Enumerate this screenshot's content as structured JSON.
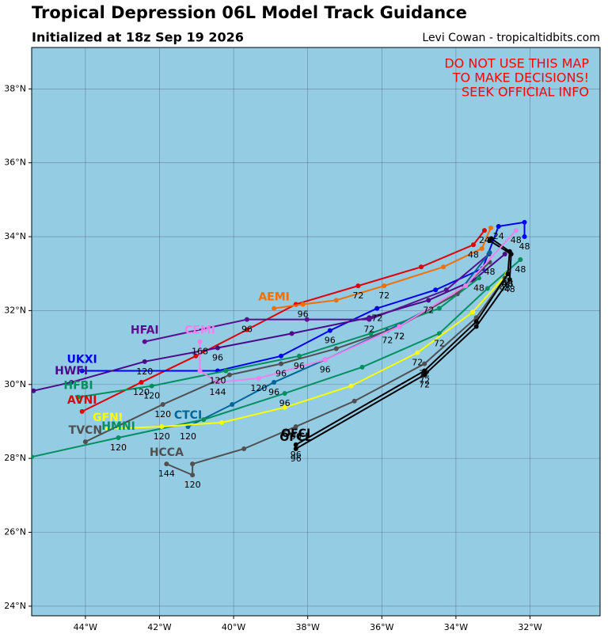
{
  "chart_data": {
    "type": "line",
    "title": "Tropical Depression 06L Model Track Guidance",
    "subtitle": "Initialized at 18z Sep 19 2026",
    "credit": "Levi Cowan - tropicaltidbits.com",
    "warning": [
      "DO NOT USE THIS MAP",
      "TO MAKE DECISIONS!",
      "SEEK OFFICIAL INFO"
    ],
    "warning_color": "#ff0000",
    "background": "#94cce4",
    "grid": true,
    "xlim": [
      -45.45,
      -30.11
    ],
    "ylim": [
      23.74,
      39.12
    ],
    "xticks": [
      {
        "value": -44,
        "label": "44°W"
      },
      {
        "value": -42,
        "label": "42°W"
      },
      {
        "value": -40,
        "label": "40°W"
      },
      {
        "value": -38,
        "label": "38°W"
      },
      {
        "value": -36,
        "label": "36°W"
      },
      {
        "value": -34,
        "label": "34°W"
      },
      {
        "value": -32,
        "label": "32°W"
      }
    ],
    "yticks": [
      {
        "value": 24,
        "label": "24°N"
      },
      {
        "value": 26,
        "label": "26°N"
      },
      {
        "value": 28,
        "label": "28°N"
      },
      {
        "value": 30,
        "label": "30°N"
      },
      {
        "value": 32,
        "label": "32°N"
      },
      {
        "value": 34,
        "label": "34°N"
      },
      {
        "value": 36,
        "label": "36°N"
      },
      {
        "value": 38,
        "label": "38°N"
      }
    ],
    "series": [
      {
        "name": "AVNI",
        "color": "#e00000",
        "x": [
          -44.09,
          -42.49,
          -41.02,
          -39.64,
          -38.32,
          -36.64,
          -34.94,
          -33.53,
          -33.23
        ],
        "values": [
          29.27,
          30.06,
          30.77,
          31.48,
          32.17,
          32.67,
          33.18,
          33.78,
          34.17
        ],
        "hour_labels": [
          null,
          "120",
          null,
          null,
          null,
          "72",
          null,
          "48",
          "24"
        ]
      },
      {
        "name": "AEMI",
        "color": "#f07000",
        "x": [
          -38.91,
          -38.13,
          -37.23,
          -35.94,
          -34.34,
          -33.3,
          -33.06
        ],
        "values": [
          32.06,
          32.17,
          32.28,
          32.67,
          33.18,
          33.68,
          34.24
        ],
        "hour_labels": [
          null,
          "96",
          null,
          "72",
          null,
          null,
          null
        ]
      },
      {
        "name": "UKXI",
        "color": "#0000ee",
        "x": [
          -44.09,
          -40.43,
          -38.72,
          -37.4,
          -36.13,
          -34.55,
          -33.28,
          -32.85,
          -32.15,
          -32.15
        ],
        "values": [
          30.37,
          30.37,
          30.77,
          31.46,
          32.06,
          32.56,
          33.14,
          34.28,
          34.39,
          34.0
        ],
        "hour_labels": [
          null,
          "120",
          null,
          "96",
          "72",
          null,
          null,
          "24",
          null,
          "48"
        ]
      },
      {
        "name": "HWFI",
        "color": "#4b0a8a",
        "x": [
          -45.4,
          -44.38,
          -42.4,
          -40.43,
          -38.43,
          -36.34,
          -34.74,
          -33.53,
          -32.68
        ],
        "values": [
          29.83,
          30.06,
          30.62,
          30.99,
          31.38,
          31.81,
          32.28,
          32.82,
          33.53
        ],
        "hour_labels": [
          null,
          null,
          "120",
          "96",
          null,
          null,
          "72",
          null,
          null
        ]
      },
      {
        "name": "HFAI",
        "color": "#5a1090",
        "x": [
          -42.4,
          -39.64,
          -38.02,
          -36.34,
          -34.26,
          -33.11
        ],
        "values": [
          31.16,
          31.76,
          31.76,
          31.76,
          32.56,
          33.53
        ],
        "hour_labels": [
          null,
          "96",
          null,
          "72",
          null,
          null
        ]
      },
      {
        "name": "CTCI",
        "color": "#006699",
        "x": [
          -41.23,
          -40.04,
          -38.91,
          -37.53,
          -35.85,
          -33.96,
          -33.09
        ],
        "values": [
          28.86,
          29.46,
          30.06,
          30.67,
          31.46,
          32.45,
          33.57
        ],
        "hour_labels": [
          "120",
          null,
          "96",
          null,
          "72",
          null,
          null
        ]
      },
      {
        "name": "HMNI",
        "color": "#009060",
        "x": [
          -45.45,
          -43.11,
          -40.81,
          -38.62,
          -36.53,
          -34.45,
          -33.15,
          -32.26
        ],
        "values": [
          28.04,
          28.56,
          29.05,
          29.76,
          30.47,
          31.38,
          32.6,
          33.38
        ],
        "hour_labels": [
          null,
          "120",
          null,
          "96",
          null,
          "72",
          null,
          "48"
        ]
      },
      {
        "name": "HFBI",
        "color": "#009060",
        "x": [
          -44.19,
          -42.21,
          -40.21,
          -38.23,
          -36.3,
          -34.45,
          -33.38
        ],
        "values": [
          29.66,
          29.96,
          30.37,
          30.77,
          31.38,
          32.06,
          32.88
        ],
        "hour_labels": [
          null,
          "120",
          null,
          "96",
          null,
          null,
          "48"
        ]
      },
      {
        "name": "GFNI",
        "color": "#ffff00",
        "x": [
          -43.4,
          -41.94,
          -40.32,
          -38.62,
          -36.83,
          -35.04,
          -33.55,
          -32.62
        ],
        "values": [
          28.8,
          28.86,
          28.97,
          29.38,
          29.96,
          30.86,
          31.96,
          32.99
        ],
        "hour_labels": [
          null,
          "120",
          null,
          null,
          null,
          "72",
          null,
          "48"
        ]
      },
      {
        "name": "TVCN",
        "color": "#505050",
        "x": [
          -44.0,
          -41.91,
          -40.11,
          -38.72,
          -37.23,
          -35.53,
          -33.96,
          -33.09
        ],
        "values": [
          28.45,
          29.46,
          30.26,
          30.56,
          30.97,
          31.57,
          32.47,
          33.31
        ],
        "hour_labels": [
          null,
          "120",
          null,
          "96",
          null,
          "72",
          null,
          "48"
        ]
      },
      {
        "name": "HCCA",
        "color": "#505050",
        "x": [
          -41.81,
          -41.11,
          -41.11,
          -39.72,
          -38.32,
          -36.74,
          -34.85,
          -33.45,
          -32.68
        ],
        "values": [
          27.85,
          27.55,
          27.85,
          28.26,
          28.86,
          29.55,
          30.56,
          31.81,
          32.88
        ],
        "hour_labels": [
          "144",
          "120",
          null,
          null,
          "96",
          null,
          "72",
          null,
          "48"
        ]
      },
      {
        "name": "OFCL",
        "color": "#000000",
        "x": [
          -38.32,
          -34.85,
          -33.45,
          -32.55,
          -32.51,
          -33.09
        ],
        "values": [
          28.26,
          30.26,
          31.57,
          32.84,
          33.53,
          33.89
        ],
        "hour_labels": [
          "96",
          "72",
          null,
          "48",
          null,
          null
        ]
      },
      {
        "name": "OFCI",
        "color": "#000000",
        "x": [
          -38.32,
          -34.85,
          -33.45,
          -32.6,
          -32.55,
          -33.05
        ],
        "values": [
          28.37,
          30.37,
          31.7,
          32.99,
          33.6,
          33.95
        ],
        "hour_labels": [
          "96",
          "72",
          null,
          "48",
          null,
          null
        ]
      },
      {
        "name": "CEMI",
        "color": "#ee82ee",
        "x": [
          -40.91,
          -40.91,
          -40.43,
          -39.32,
          -37.53,
          -35.53,
          -33.74,
          -32.38
        ],
        "values": [
          31.16,
          30.37,
          30.06,
          30.17,
          30.67,
          31.57,
          32.67,
          34.17
        ],
        "hour_labels": [
          "168",
          null,
          "144",
          "120",
          "96",
          "72",
          null,
          "48"
        ]
      }
    ]
  }
}
